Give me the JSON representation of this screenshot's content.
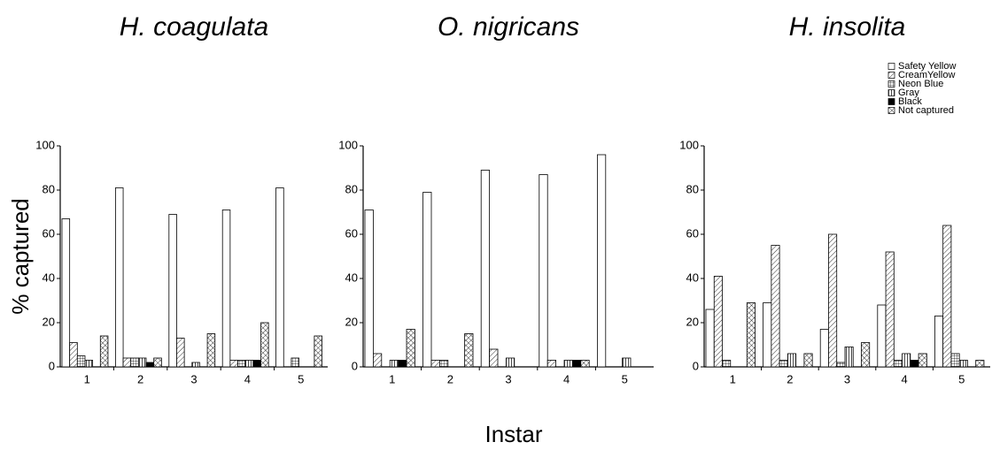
{
  "y_label": "% captured",
  "x_label": "Instar",
  "chart_data": [
    {
      "type": "bar",
      "title": "H. coagulata",
      "categories": [
        "1",
        "2",
        "3",
        "4",
        "5"
      ],
      "ylim": [
        0,
        100
      ],
      "yticks": [
        0,
        20,
        40,
        60,
        80,
        100
      ],
      "series": [
        {
          "color": "#ffffff",
          "pattern": "none",
          "values": [
            67,
            81,
            69,
            71,
            81
          ]
        },
        {
          "color": "#ffffff",
          "pattern": "diagonal",
          "values": [
            11,
            4,
            13,
            3,
            0
          ]
        },
        {
          "color": "#ffffff",
          "pattern": "grid",
          "values": [
            5,
            4,
            0,
            3,
            4
          ]
        },
        {
          "color": "#ffffff",
          "pattern": "vertical",
          "values": [
            3,
            4,
            2,
            3,
            0
          ]
        },
        {
          "color": "#000000",
          "pattern": "none",
          "values": [
            0,
            2,
            0,
            3,
            0
          ]
        },
        {
          "color": "#ffffff",
          "pattern": "cross",
          "values": [
            14,
            4,
            15,
            20,
            14
          ]
        }
      ]
    },
    {
      "type": "bar",
      "title": "O. nigricans",
      "categories": [
        "1",
        "2",
        "3",
        "4",
        "5"
      ],
      "ylim": [
        0,
        100
      ],
      "yticks": [
        0,
        20,
        40,
        60,
        80,
        100
      ],
      "series": [
        {
          "color": "#ffffff",
          "pattern": "none",
          "values": [
            71,
            79,
            89,
            87,
            96
          ]
        },
        {
          "color": "#ffffff",
          "pattern": "diagonal",
          "values": [
            6,
            3,
            8,
            3,
            0
          ]
        },
        {
          "color": "#ffffff",
          "pattern": "grid",
          "values": [
            0,
            3,
            0,
            0,
            0
          ]
        },
        {
          "color": "#ffffff",
          "pattern": "vertical",
          "values": [
            3,
            0,
            4,
            3,
            4
          ]
        },
        {
          "color": "#000000",
          "pattern": "none",
          "values": [
            3,
            0,
            0,
            3,
            0
          ]
        },
        {
          "color": "#ffffff",
          "pattern": "cross",
          "values": [
            17,
            15,
            0,
            3,
            0
          ]
        }
      ]
    },
    {
      "type": "bar",
      "title": "H. insolita",
      "categories": [
        "1",
        "2",
        "3",
        "4",
        "5"
      ],
      "ylim": [
        0,
        100
      ],
      "yticks": [
        0,
        20,
        40,
        60,
        80,
        100
      ],
      "legend": "top-right",
      "series": [
        {
          "name": "Safety Yellow",
          "color": "#ffffff",
          "pattern": "none",
          "values": [
            26,
            29,
            17,
            28,
            23
          ]
        },
        {
          "name": "CreamYellow",
          "color": "#ffffff",
          "pattern": "diagonal",
          "values": [
            41,
            55,
            60,
            52,
            64
          ]
        },
        {
          "name": "Neon Blue",
          "color": "#ffffff",
          "pattern": "grid",
          "values": [
            3,
            3,
            2,
            3,
            6
          ]
        },
        {
          "name": "Gray",
          "color": "#ffffff",
          "pattern": "vertical",
          "values": [
            0,
            6,
            9,
            6,
            3
          ]
        },
        {
          "name": "Black",
          "color": "#000000",
          "pattern": "none",
          "values": [
            0,
            0,
            0,
            3,
            0
          ]
        },
        {
          "name": "Not captured",
          "color": "#ffffff",
          "pattern": "cross",
          "values": [
            29,
            6,
            11,
            6,
            3
          ]
        }
      ]
    }
  ]
}
